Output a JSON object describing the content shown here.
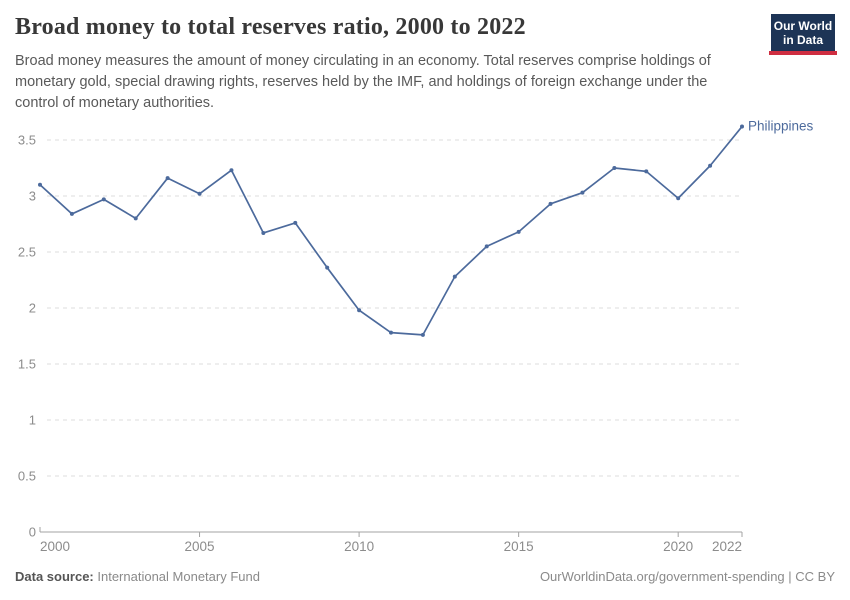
{
  "header": {
    "subtitle": "Broad money measures the amount of money circulating in an economy. Total reserves comprise holdings of monetary gold, special drawing rights, reserves held by the IMF, and holdings of foreign exchange under the control of monetary authorities."
  },
  "logo": {
    "line1": "Our World",
    "line2": "in Data",
    "bg_color": "#1d3456",
    "bar_color": "#cf2e41"
  },
  "footer": {
    "source_label": "Data source:",
    "source_value": "International Monetary Fund",
    "credit": "OurWorldinData.org/government-spending | CC BY"
  },
  "colors": {
    "line": "#4c6a9c",
    "axis_text": "#8c8c8c",
    "gridline": "#dcdcdc",
    "axis_line": "#a3a3a3"
  },
  "chart_data": {
    "type": "line",
    "title": "Broad money to total reserves ratio, 2000 to 2022",
    "xlabel": "",
    "ylabel": "",
    "x": [
      2000,
      2001,
      2002,
      2003,
      2004,
      2005,
      2006,
      2007,
      2008,
      2009,
      2010,
      2011,
      2012,
      2013,
      2014,
      2015,
      2016,
      2017,
      2018,
      2019,
      2020,
      2021,
      2022
    ],
    "series": [
      {
        "name": "Philippines",
        "color": "#4c6a9c",
        "values": [
          3.1,
          2.84,
          2.97,
          2.8,
          3.16,
          3.02,
          3.23,
          2.67,
          2.76,
          2.36,
          1.98,
          1.78,
          1.76,
          2.28,
          2.55,
          2.68,
          2.93,
          3.03,
          3.25,
          3.22,
          2.98,
          3.27,
          3.62
        ]
      }
    ],
    "x_ticks": [
      2000,
      2005,
      2010,
      2015,
      2020,
      2022
    ],
    "y_ticks": [
      0,
      0.5,
      1,
      1.5,
      2,
      2.5,
      3,
      3.5
    ],
    "xlim": [
      2000,
      2022
    ],
    "ylim": [
      0,
      3.66
    ],
    "grid": "horizontal-dashed",
    "legend_position": "end-of-line-label"
  }
}
